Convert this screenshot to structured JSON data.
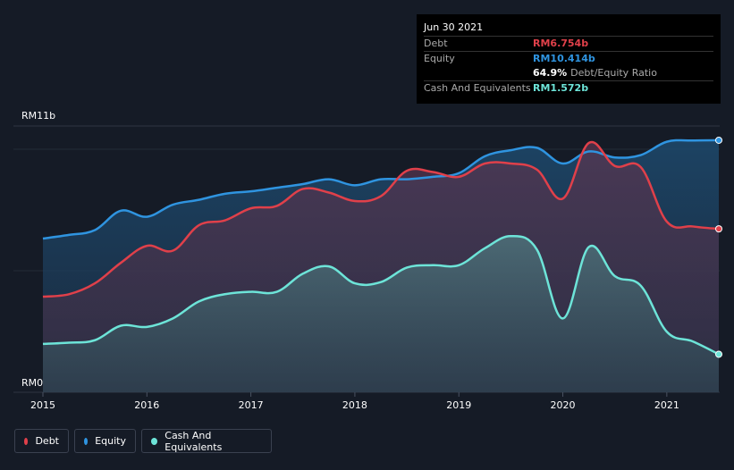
{
  "tooltip": {
    "date": "Jun 30 2021",
    "debt_label": "Debt",
    "debt_value": "RM6.754b",
    "equity_label": "Equity",
    "equity_value": "RM10.414b",
    "ratio_value": "64.9%",
    "ratio_label": "Debt/Equity Ratio",
    "cash_label": "Cash And Equivalents",
    "cash_value": "RM1.572b"
  },
  "legend": {
    "debt": "Debt",
    "equity": "Equity",
    "cash": "Cash And Equivalents"
  },
  "colors": {
    "debt": "#e0404a",
    "equity": "#2f94e0",
    "cash": "#6de4d8",
    "background": "#151b26"
  },
  "chart_data": {
    "type": "area",
    "title": "",
    "xlabel": "",
    "ylabel": "",
    "ylim": [
      0,
      11
    ],
    "y_unit": "RM b",
    "y_tick_labels": [
      "RM11b",
      "RM0"
    ],
    "x_ticks": [
      "2015",
      "2016",
      "2017",
      "2018",
      "2019",
      "2020",
      "2021"
    ],
    "x_range": [
      2015.0,
      2021.5
    ],
    "x": [
      2015.0,
      2015.25,
      2015.5,
      2015.75,
      2016.0,
      2016.25,
      2016.5,
      2016.75,
      2017.0,
      2017.25,
      2017.5,
      2017.75,
      2018.0,
      2018.25,
      2018.5,
      2018.75,
      2019.0,
      2019.25,
      2019.5,
      2019.75,
      2020.0,
      2020.25,
      2020.5,
      2020.75,
      2021.0,
      2021.25,
      2021.5
    ],
    "series": [
      {
        "name": "Debt",
        "values": [
          3.95,
          4.05,
          4.5,
          5.35,
          6.05,
          5.85,
          6.9,
          7.1,
          7.6,
          7.7,
          8.4,
          8.25,
          7.9,
          8.1,
          9.15,
          9.1,
          8.9,
          9.45,
          9.45,
          9.2,
          8.0,
          10.3,
          9.35,
          9.3,
          7.05,
          6.85,
          6.75
        ]
      },
      {
        "name": "Equity",
        "values": [
          6.35,
          6.5,
          6.7,
          7.5,
          7.25,
          7.75,
          7.95,
          8.2,
          8.3,
          8.45,
          8.6,
          8.8,
          8.55,
          8.8,
          8.8,
          8.9,
          9.05,
          9.75,
          10.0,
          10.1,
          9.45,
          9.95,
          9.7,
          9.8,
          10.35,
          10.4,
          10.41
        ]
      },
      {
        "name": "Cash And Equivalents",
        "values": [
          2.0,
          2.05,
          2.15,
          2.75,
          2.7,
          3.05,
          3.75,
          4.05,
          4.15,
          4.15,
          4.9,
          5.2,
          4.5,
          4.55,
          5.15,
          5.25,
          5.25,
          5.95,
          6.45,
          5.9,
          3.05,
          6.0,
          4.8,
          4.4,
          2.5,
          2.1,
          1.57
        ]
      }
    ]
  }
}
